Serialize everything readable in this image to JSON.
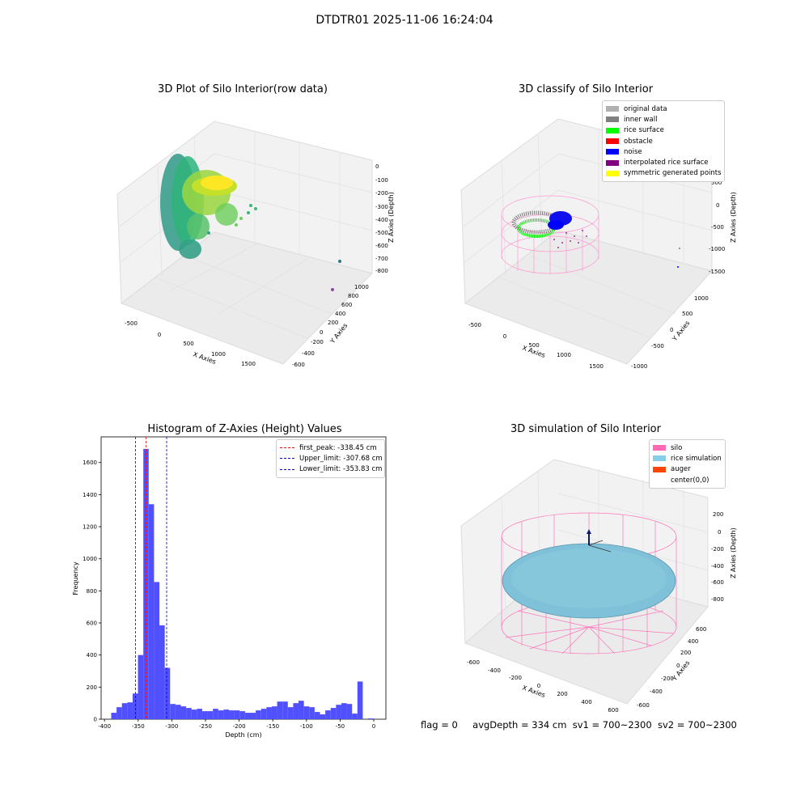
{
  "suptitle": "DTDTR01 2025-11-06 16:24:04",
  "panels": {
    "raw": {
      "title": "3D Plot of Silo Interior(row data)",
      "xlabel": "X Axies",
      "ylabel": "Y Axies",
      "zlabel": "Z Axies (Depth)",
      "x_ticks": [
        "-500",
        "0",
        "500",
        "1000",
        "1500"
      ],
      "y_ticks": [
        "-600",
        "-400",
        "-200",
        "0",
        "200",
        "400",
        "600",
        "800",
        "1000"
      ],
      "z_ticks": [
        "0",
        "-100",
        "-200",
        "-300",
        "-400",
        "-500",
        "-600",
        "-700",
        "-800"
      ]
    },
    "classify": {
      "title": "3D classify of Silo Interior",
      "xlabel": "X Axies",
      "ylabel": "Y Axies",
      "zlabel": "Z Axies (Depth)",
      "x_ticks": [
        "-500",
        "0",
        "500",
        "1000",
        "1500"
      ],
      "y_ticks": [
        "-1000",
        "-500",
        "0",
        "500",
        "1000"
      ],
      "z_ticks": [
        "500",
        "0",
        "-500",
        "-1000",
        "-1500"
      ],
      "legend": [
        {
          "label": "original data",
          "color": "#b0b0b0"
        },
        {
          "label": "inner wall",
          "color": "#808080"
        },
        {
          "label": "rice surface",
          "color": "#00ff00"
        },
        {
          "label": "obstacle",
          "color": "#ff0000"
        },
        {
          "label": "noise",
          "color": "#0000ff"
        },
        {
          "label": "interpolated rice surface",
          "color": "#800080"
        },
        {
          "label": "symmetric generated points",
          "color": "#ffff00"
        }
      ]
    },
    "simulation": {
      "title": "3D simulation of Silo Interior",
      "xlabel": "X Axies",
      "ylabel": "Y Axies",
      "zlabel": "Z Axies (Depth)",
      "x_ticks": [
        "-600",
        "-400",
        "-200",
        "0",
        "200",
        "400",
        "600"
      ],
      "y_ticks": [
        "-600",
        "-400",
        "-200",
        "0",
        "200",
        "400",
        "600"
      ],
      "z_ticks": [
        "200",
        "0",
        "-200",
        "-400",
        "-600",
        "-800"
      ],
      "legend": [
        {
          "label": "silo",
          "color": "#ff69b4"
        },
        {
          "label": "rice simulation",
          "color": "#87ceeb"
        },
        {
          "label": "auger",
          "color": "#ff4500"
        },
        {
          "label": "center(0,0)",
          "color": "#ffffff"
        }
      ]
    }
  },
  "status": {
    "flag": "flag = 0",
    "avg_depth": "avgDepth = 334 cm",
    "sv1": "sv1 = 700~2300",
    "sv2": "sv2 = 700~2300"
  },
  "colors": {
    "bar": "#4d4dff",
    "first_peak": "#ff0000",
    "limits": "#0000cc"
  },
  "chart_data": {
    "type": "bar",
    "title": "Histogram of Z-Axies (Height) Values",
    "xlabel": "Depth (cm)",
    "ylabel": "Frequency",
    "xlim": [
      -405,
      18
    ],
    "ylim": [
      0,
      1760
    ],
    "x_ticks": [
      -400,
      -350,
      -300,
      -250,
      -200,
      -150,
      -100,
      -50,
      0
    ],
    "y_ticks": [
      0,
      200,
      400,
      600,
      800,
      1000,
      1200,
      1400,
      1600
    ],
    "bin_start": -390,
    "bin_width": 7.95,
    "values": [
      40,
      75,
      100,
      105,
      160,
      400,
      1685,
      1340,
      855,
      585,
      320,
      95,
      90,
      80,
      70,
      60,
      65,
      50,
      50,
      65,
      55,
      60,
      55,
      55,
      50,
      40,
      40,
      55,
      65,
      75,
      80,
      110,
      110,
      75,
      100,
      115,
      80,
      75,
      45,
      30,
      55,
      70,
      90,
      100,
      95,
      35,
      235,
      0,
      5
    ],
    "reference_lines": [
      {
        "label": "first_peak: -338.45 cm",
        "x": -338.45,
        "color": "#ff0000"
      },
      {
        "label": "Upper_limit: -307.68 cm",
        "x": -307.68,
        "color": "#0000cc"
      },
      {
        "label": "Lower_limit: -353.83 cm",
        "x": -353.83,
        "color": "#0000cc"
      }
    ],
    "legend_position": "top-right",
    "grid": false
  }
}
